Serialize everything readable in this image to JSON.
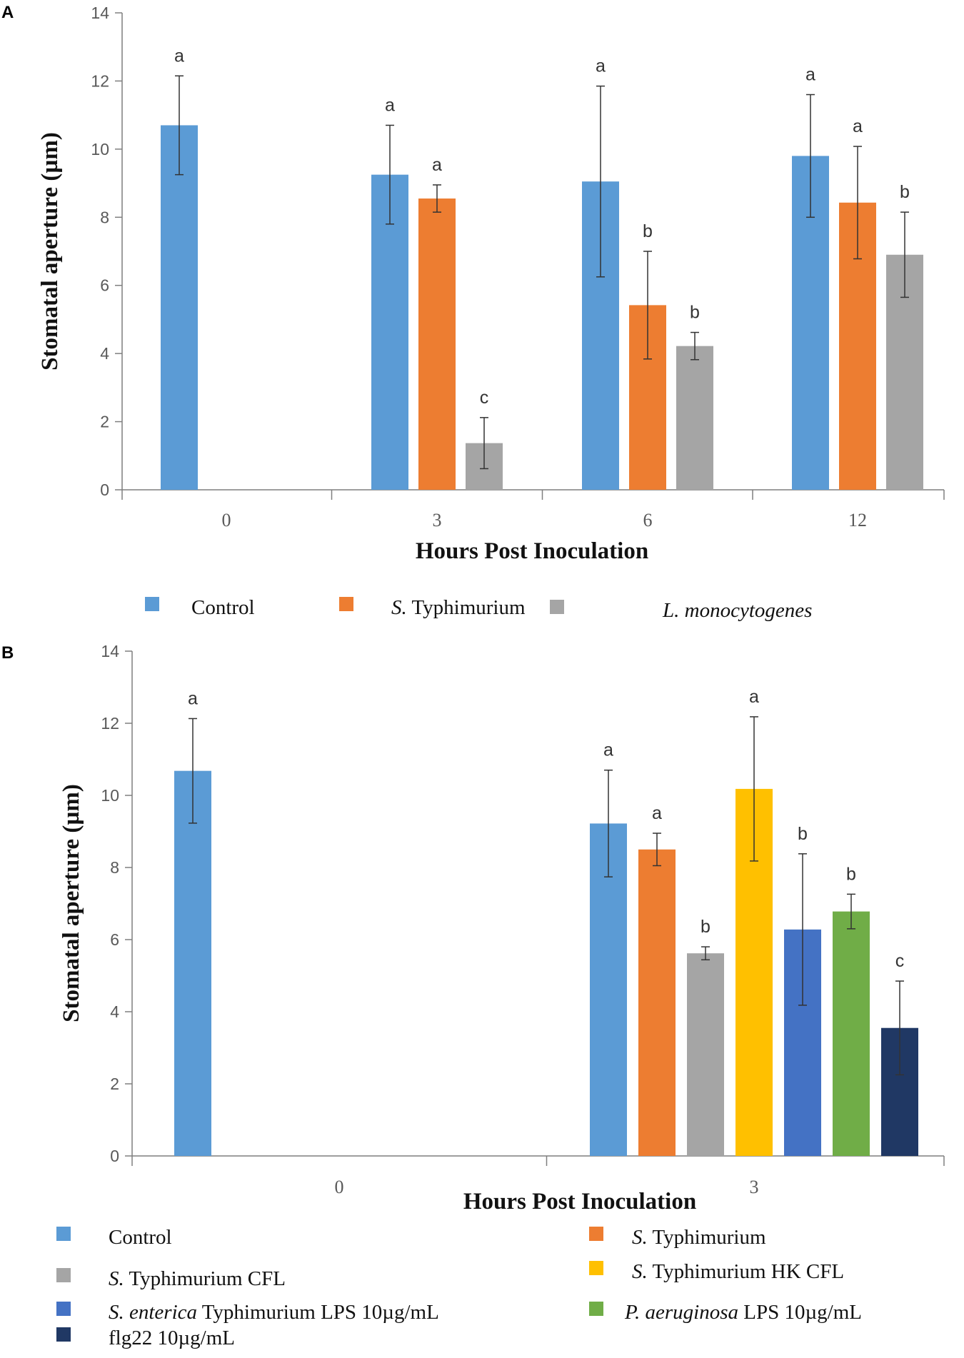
{
  "chart_data": [
    {
      "panel": "A",
      "type": "bar",
      "xlabel": "Hours Post Inoculation",
      "ylabel": "Stomatal aperture (µm)",
      "ylim": [
        0,
        14
      ],
      "yticks": [
        "0",
        "2",
        "4",
        "6",
        "8",
        "10",
        "12",
        "14"
      ],
      "categories": [
        "0",
        "3",
        "6",
        "12"
      ],
      "series": [
        {
          "name": "Control",
          "name_italic": "",
          "name_rest": "Control",
          "color": "#5B9BD5",
          "values": [
            10.7,
            9.25,
            9.05,
            9.8
          ],
          "errors": [
            1.45,
            1.45,
            2.8,
            1.8
          ],
          "labels": [
            "a",
            "a",
            "a",
            "a"
          ]
        },
        {
          "name": "S. Typhimurium",
          "name_italic": "S.",
          "name_rest": " Typhimurium",
          "color": "#ED7D31",
          "values": [
            null,
            8.55,
            5.42,
            8.43
          ],
          "errors": [
            null,
            0.4,
            1.58,
            1.65
          ],
          "labels": [
            "",
            "a",
            "b",
            "a"
          ]
        },
        {
          "name": "L. monocytogenes",
          "name_italic": "L. monocytogenes",
          "name_rest": "",
          "color": "#A5A5A5",
          "values": [
            null,
            1.37,
            4.22,
            6.9
          ],
          "errors": [
            null,
            0.75,
            0.4,
            1.25
          ],
          "labels": [
            "",
            "c",
            "b",
            "b"
          ]
        }
      ]
    },
    {
      "panel": "B",
      "type": "bar",
      "xlabel": "Hours Post Inoculation",
      "ylabel": "Stomatal aperture (µm)",
      "ylim": [
        0,
        14
      ],
      "yticks": [
        "0",
        "2",
        "4",
        "6",
        "8",
        "10",
        "12",
        "14"
      ],
      "categories": [
        "0",
        "3"
      ],
      "series": [
        {
          "name": "Control",
          "name_italic": "",
          "name_rest": "Control",
          "color": "#5B9BD5",
          "values": [
            10.68,
            9.22
          ],
          "errors": [
            1.45,
            1.48
          ],
          "labels": [
            "a",
            "a"
          ]
        },
        {
          "name": "S. Typhimurium",
          "name_italic": "S.",
          "name_rest": " Typhimurium",
          "color": "#ED7D31",
          "values": [
            null,
            8.5
          ],
          "errors": [
            null,
            0.45
          ],
          "labels": [
            "",
            "a"
          ]
        },
        {
          "name": "S. Typhimurium CFL",
          "name_italic": "S.",
          "name_rest": " Typhimurium CFL",
          "color": "#A5A5A5",
          "values": [
            null,
            5.62
          ],
          "errors": [
            null,
            0.18
          ],
          "labels": [
            "",
            "b"
          ]
        },
        {
          "name": "S. Typhimurium HK CFL",
          "name_italic": "S.",
          "name_rest": " Typhimurium HK CFL",
          "color": "#FFC000",
          "values": [
            null,
            10.18
          ],
          "errors": [
            null,
            2.0
          ],
          "labels": [
            "",
            "a"
          ]
        },
        {
          "name": "S. enterica Typhimurium LPS 10µg/mL",
          "name_italic": "S. enterica",
          "name_rest": " Typhimurium LPS 10µg/mL",
          "color": "#4472C4",
          "values": [
            null,
            6.28
          ],
          "errors": [
            null,
            2.1
          ],
          "labels": [
            "",
            "b"
          ]
        },
        {
          "name": "P. aeruginosa LPS 10µg/mL",
          "name_italic": "P. aeruginosa",
          "name_rest": " LPS 10µg/mL",
          "color": "#70AD47",
          "values": [
            null,
            6.78
          ],
          "errors": [
            null,
            0.48
          ],
          "labels": [
            "",
            "b"
          ]
        },
        {
          "name": "flg22 10µg/mL",
          "name_italic": "",
          "name_rest": "flg22 10µg/mL",
          "color": "#203864",
          "values": [
            null,
            3.55
          ],
          "errors": [
            null,
            1.3
          ],
          "labels": [
            "",
            "c"
          ]
        }
      ]
    }
  ]
}
